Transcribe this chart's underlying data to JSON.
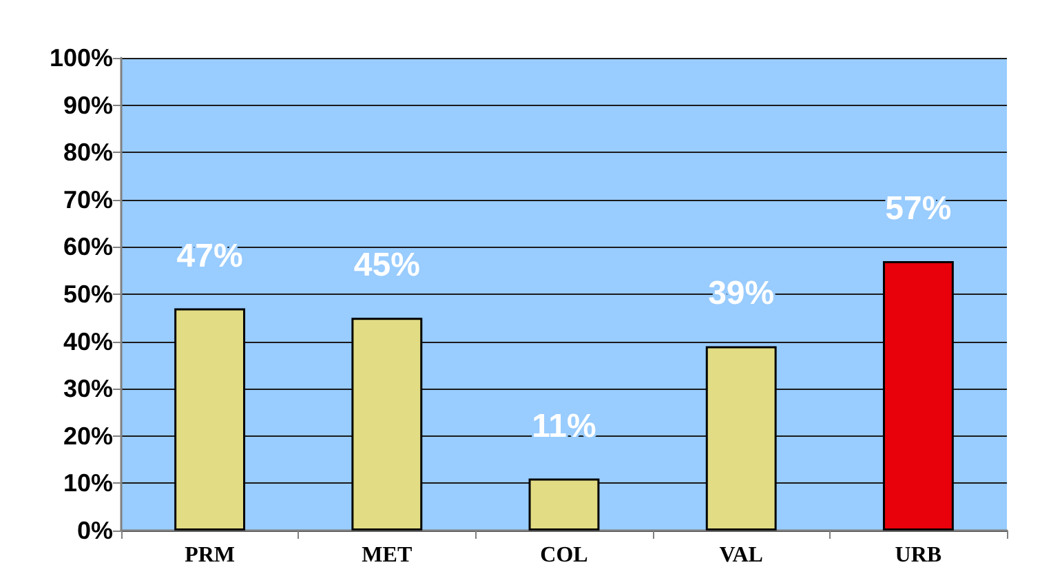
{
  "chart_data": {
    "type": "bar",
    "categories": [
      "PRM",
      "MET",
      "COL",
      "VAL",
      "URB"
    ],
    "values": [
      47,
      45,
      11,
      39,
      57
    ],
    "colors": [
      "#e2dc84",
      "#e2dc84",
      "#e2dc84",
      "#e2dc84",
      "#e8000a"
    ],
    "value_labels": [
      "47%",
      "45%",
      "11%",
      "39%",
      "57%"
    ],
    "ylim": [
      0,
      100
    ],
    "yticks": [
      {
        "value": 0,
        "label": "0%"
      },
      {
        "value": 10,
        "label": "10%"
      },
      {
        "value": 20,
        "label": "20%"
      },
      {
        "value": 30,
        "label": "30%"
      },
      {
        "value": 40,
        "label": "40%"
      },
      {
        "value": 50,
        "label": "50%"
      },
      {
        "value": 60,
        "label": "60%"
      },
      {
        "value": 70,
        "label": "70%"
      },
      {
        "value": 80,
        "label": "80%"
      },
      {
        "value": 90,
        "label": "90%"
      },
      {
        "value": 100,
        "label": "100%"
      }
    ],
    "grid": "y"
  }
}
